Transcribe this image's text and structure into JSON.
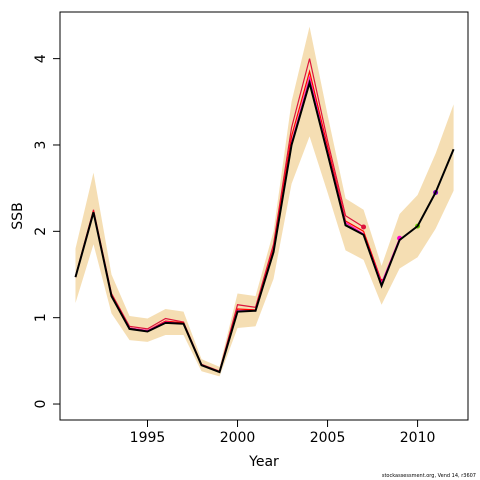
{
  "chart_data": {
    "type": "line",
    "xlabel": "Year",
    "ylabel": "SSB",
    "footnote": "stockassessment.org, Vend 14, r3607",
    "x": [
      1991,
      1992,
      1993,
      1994,
      1995,
      1996,
      1997,
      1998,
      1999,
      2000,
      2001,
      2002,
      2003,
      2004,
      2005,
      2006,
      2007,
      2008,
      2009,
      2010,
      2011,
      2012
    ],
    "band": {
      "color": "#f5deb3",
      "upper": [
        1.8,
        2.68,
        1.5,
        1.02,
        0.99,
        1.1,
        1.07,
        0.52,
        0.43,
        1.28,
        1.25,
        2.0,
        3.5,
        4.37,
        3.35,
        2.38,
        2.25,
        1.6,
        2.2,
        2.42,
        2.9,
        3.47
      ],
      "lower": [
        1.17,
        1.85,
        1.05,
        0.74,
        0.72,
        0.8,
        0.8,
        0.38,
        0.32,
        0.88,
        0.9,
        1.45,
        2.55,
        3.1,
        2.45,
        1.78,
        1.67,
        1.15,
        1.57,
        1.7,
        2.03,
        2.47
      ]
    },
    "series": [
      {
        "color": "#dc143c",
        "values": [
          1.48,
          2.25,
          1.28,
          0.9,
          0.87,
          0.99,
          0.95,
          0.46,
          0.38,
          1.15,
          1.12,
          1.85,
          3.2,
          4.0,
          3.05,
          2.18,
          2.05,
          null,
          null,
          null,
          null,
          null
        ]
      },
      {
        "color": "#ff0000",
        "values": [
          1.47,
          2.23,
          1.26,
          0.88,
          0.85,
          0.96,
          0.94,
          0.45,
          0.37,
          1.1,
          1.09,
          1.8,
          3.1,
          3.85,
          2.98,
          2.12,
          2.0,
          1.42,
          null,
          null,
          null,
          null
        ]
      },
      {
        "color": "#ff00cc",
        "values": [
          1.47,
          2.22,
          1.25,
          0.88,
          0.85,
          0.95,
          0.93,
          0.45,
          0.37,
          1.08,
          1.08,
          1.77,
          3.03,
          3.78,
          2.93,
          2.1,
          1.97,
          1.4,
          1.92,
          null,
          null,
          null
        ]
      },
      {
        "color": "#66cc00",
        "values": [
          1.47,
          2.22,
          1.25,
          0.87,
          0.84,
          0.94,
          0.93,
          0.45,
          0.37,
          1.07,
          1.08,
          1.76,
          3.01,
          3.74,
          2.91,
          2.08,
          1.96,
          1.38,
          1.9,
          2.06,
          null,
          null
        ]
      },
      {
        "color": "#8000c0",
        "values": [
          1.47,
          2.22,
          1.25,
          0.87,
          0.84,
          0.94,
          0.93,
          0.45,
          0.37,
          1.07,
          1.08,
          1.76,
          3.0,
          3.72,
          2.9,
          2.07,
          1.96,
          1.37,
          1.9,
          2.06,
          2.45,
          null
        ]
      },
      {
        "color": "#000000",
        "values": [
          1.47,
          2.22,
          1.25,
          0.87,
          0.84,
          0.94,
          0.93,
          0.45,
          0.37,
          1.07,
          1.08,
          1.76,
          3.0,
          3.72,
          2.9,
          2.07,
          1.96,
          1.37,
          1.9,
          2.06,
          2.45,
          2.95
        ]
      }
    ],
    "xlim": [
      1990.14,
      2012.8
    ],
    "xticks": [
      1995,
      2000,
      2005,
      2010
    ],
    "ylim": [
      -0.185,
      4.54
    ],
    "yticks": [
      0,
      1,
      2,
      3,
      4
    ]
  }
}
